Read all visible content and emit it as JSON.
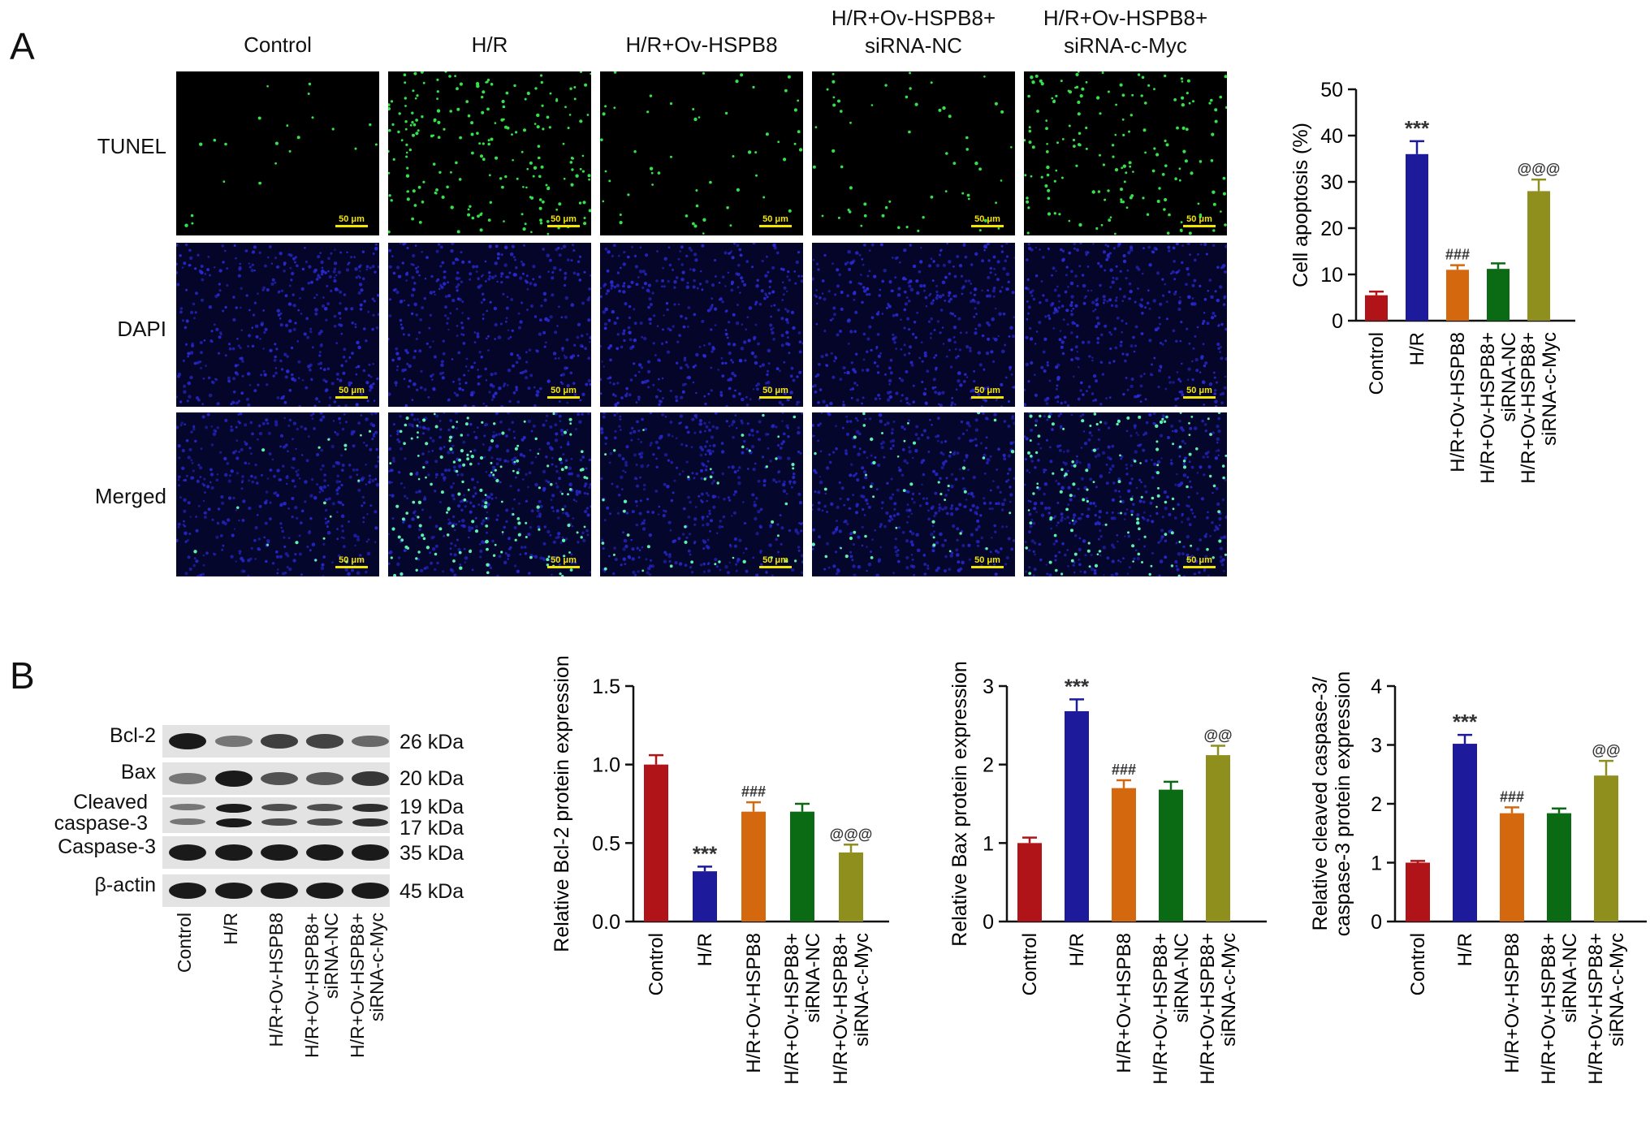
{
  "panels": {
    "a": "A",
    "b": "B"
  },
  "microscopy": {
    "columns": [
      "Control",
      "H/R",
      "H/R+Ov-HSPB8",
      "H/R+Ov-HSPB8+\nsiRNA-NC",
      "H/R+Ov-HSPB8+\nsiRNA-c-Myc"
    ],
    "rows": [
      "TUNEL",
      "DAPI",
      "Merged"
    ],
    "scale_bar": "50 μm"
  },
  "western_blot": {
    "bands": [
      {
        "label": "Bcl-2",
        "kda": "26 kDa",
        "intensity": [
          1.0,
          0.35,
          0.75,
          0.72,
          0.45
        ]
      },
      {
        "label": "Bax",
        "kda": "20 kDa",
        "intensity": [
          0.35,
          1.0,
          0.6,
          0.55,
          0.8
        ]
      },
      {
        "label": "Cleaved\ncaspase-3",
        "kda": "19 kDa\n17 kDa",
        "intensity": [
          0.3,
          1.0,
          0.6,
          0.6,
          0.85
        ]
      },
      {
        "label": "Caspase-3",
        "kda": "35 kDa",
        "intensity": [
          1.0,
          1.0,
          1.0,
          1.0,
          1.0
        ]
      },
      {
        "label": "β-actin",
        "kda": "45 kDa",
        "intensity": [
          1.0,
          1.0,
          1.0,
          1.0,
          1.0
        ]
      }
    ],
    "lanes": [
      "Control",
      "H/R",
      "H/R+Ov-HSPB8",
      "H/R+Ov-HSPB8+\nsiRNA-NC",
      "H/R+Ov-HSPB8+\nsiRNA-c-Myc"
    ]
  },
  "colors": {
    "Control": "#b01318",
    "H/R": "#1d1a9c",
    "H/R+Ov-HSPB8": "#d4680f",
    "H/R+Ov-HSPB8+siRNA-NC": "#0b6b14",
    "H/R+Ov-HSPB8+siRNA-c-Myc": "#8f8f1e"
  },
  "chart_data": [
    {
      "type": "bar",
      "categories": [
        "Control",
        "H/R",
        "H/R+Ov-HSPB8",
        "H/R+Ov-HSPB8+\nsiRNA-NC",
        "H/R+Ov-HSPB8+\nsiRNA-c-Myc"
      ],
      "values": [
        5.5,
        36,
        11,
        11.2,
        28
      ],
      "errors": [
        0.8,
        2.8,
        1.0,
        1.2,
        2.5
      ],
      "significance": [
        "",
        "***",
        "###",
        "",
        "@@@"
      ],
      "ylabel": "Cell apoptosis (%)",
      "ylim": [
        0,
        50
      ],
      "yticks": [
        "0",
        "10",
        "20",
        "30",
        "40",
        "50"
      ]
    },
    {
      "type": "bar",
      "categories": [
        "Control",
        "H/R",
        "H/R+Ov-HSPB8",
        "H/R+Ov-HSPB8+\nsiRNA-NC",
        "H/R+Ov-HSPB8+\nsiRNA-c-Myc"
      ],
      "values": [
        1.0,
        0.32,
        0.7,
        0.7,
        0.44
      ],
      "errors": [
        0.06,
        0.03,
        0.06,
        0.05,
        0.05
      ],
      "significance": [
        "",
        "***",
        "###",
        "",
        "@@@"
      ],
      "ylabel": "Relative Bcl-2 protein expression",
      "ylim": [
        0,
        1.5
      ],
      "yticks": [
        "0.0",
        "0.5",
        "1.0",
        "1.5"
      ]
    },
    {
      "type": "bar",
      "categories": [
        "Control",
        "H/R",
        "H/R+Ov-HSPB8",
        "H/R+Ov-HSPB8+\nsiRNA-NC",
        "H/R+Ov-HSPB8+\nsiRNA-c-Myc"
      ],
      "values": [
        1.0,
        2.68,
        1.7,
        1.68,
        2.12
      ],
      "errors": [
        0.07,
        0.15,
        0.1,
        0.1,
        0.12
      ],
      "significance": [
        "",
        "***",
        "###",
        "",
        "@@"
      ],
      "ylabel": "Relative Bax protein expression",
      "ylim": [
        0,
        3
      ],
      "yticks": [
        "0",
        "1",
        "2",
        "3"
      ]
    },
    {
      "type": "bar",
      "categories": [
        "Control",
        "H/R",
        "H/R+Ov-HSPB8",
        "H/R+Ov-HSPB8+\nsiRNA-NC",
        "H/R+Ov-HSPB8+\nsiRNA-c-Myc"
      ],
      "values": [
        1.0,
        3.02,
        1.84,
        1.84,
        2.48
      ],
      "errors": [
        0.03,
        0.15,
        0.1,
        0.08,
        0.25
      ],
      "significance": [
        "",
        "***",
        "###",
        "",
        "@@"
      ],
      "ylabel": "Relative cleaved caspase-3/\ncaspase-3 protein expression",
      "ylim": [
        0,
        4
      ],
      "yticks": [
        "0",
        "1",
        "2",
        "3",
        "4"
      ]
    }
  ]
}
